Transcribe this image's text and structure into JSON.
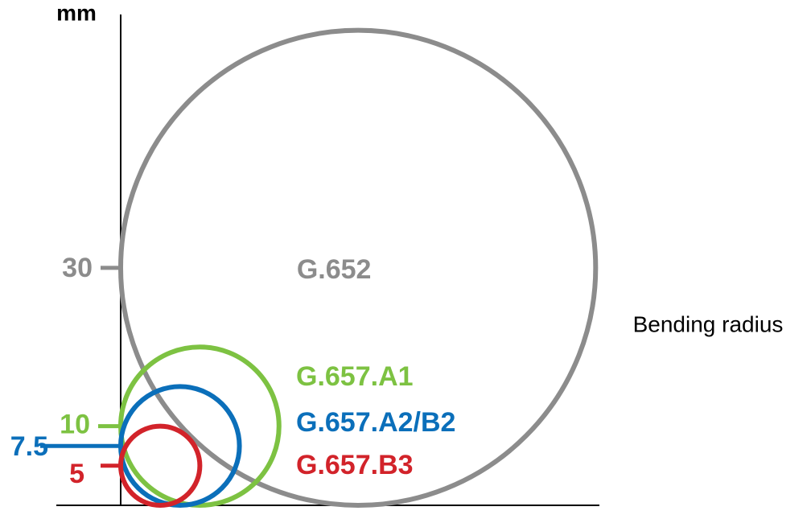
{
  "chart_data": {
    "type": "bend-circles",
    "y_label": "mm",
    "x_label": "Bending radius",
    "ylim": [
      0,
      62
    ],
    "series": [
      {
        "name": "G.652",
        "color": "#8c8c8c",
        "value": 30
      },
      {
        "name": "G.657.A1",
        "color": "#7dc242",
        "value": 10
      },
      {
        "name": "G.657.A2/B2",
        "color": "#0b6fba",
        "value": 7.5
      },
      {
        "name": "G.657.B3",
        "color": "#d2232a",
        "value": 5
      }
    ]
  }
}
